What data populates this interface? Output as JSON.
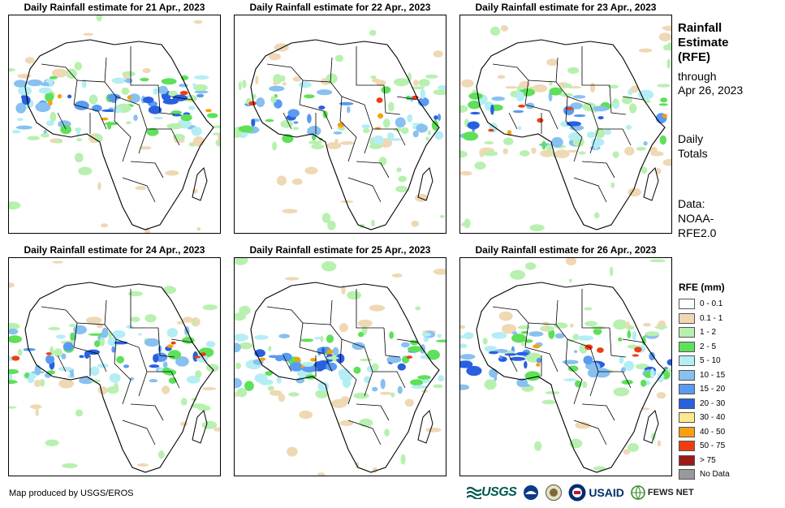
{
  "panels": [
    {
      "title": "Daily Rainfall estimate for 21 Apr., 2023"
    },
    {
      "title": "Daily Rainfall estimate for 22 Apr., 2023"
    },
    {
      "title": "Daily Rainfall estimate for 23 Apr., 2023"
    },
    {
      "title": "Daily Rainfall estimate for 24 Apr., 2023"
    },
    {
      "title": "Daily Rainfall estimate for 25 Apr., 2023"
    },
    {
      "title": "Daily Rainfall estimate for 26 Apr., 2023"
    }
  ],
  "sidebar": {
    "title_line1": "Rainfall",
    "title_line2": "Estimate",
    "title_line3": "(RFE)",
    "through_label": "through",
    "through_date": "Apr 26, 2023",
    "totals_line1": "Daily",
    "totals_line2": "Totals",
    "data_line1": "Data:",
    "data_line2": "NOAA-",
    "data_line3": "RFE2.0"
  },
  "legend": {
    "title": "RFE (mm)",
    "items": [
      {
        "label": "0 - 0.1",
        "color": "#ffffff"
      },
      {
        "label": "0.1 - 1",
        "color": "#efd8b4"
      },
      {
        "label": "1 - 2",
        "color": "#b8f0b0"
      },
      {
        "label": "2 - 5",
        "color": "#5ee05a"
      },
      {
        "label": "5 - 10",
        "color": "#b4eef4"
      },
      {
        "label": "10 - 15",
        "color": "#88c0f0"
      },
      {
        "label": "15 - 20",
        "color": "#5a9af0"
      },
      {
        "label": "20 - 30",
        "color": "#2860e0"
      },
      {
        "label": "30 - 40",
        "color": "#fce890"
      },
      {
        "label": "40 - 50",
        "color": "#f8a010"
      },
      {
        "label": "50 - 75",
        "color": "#f03c14"
      },
      {
        "label": "> 75",
        "color": "#a01818"
      },
      {
        "label": "No Data",
        "color": "#999999"
      }
    ]
  },
  "footer": {
    "credit": "Map produced by USGS/EROS",
    "logos": {
      "usgs": "USGS",
      "usaid": "USAID",
      "fews": "FEWS NET"
    }
  }
}
